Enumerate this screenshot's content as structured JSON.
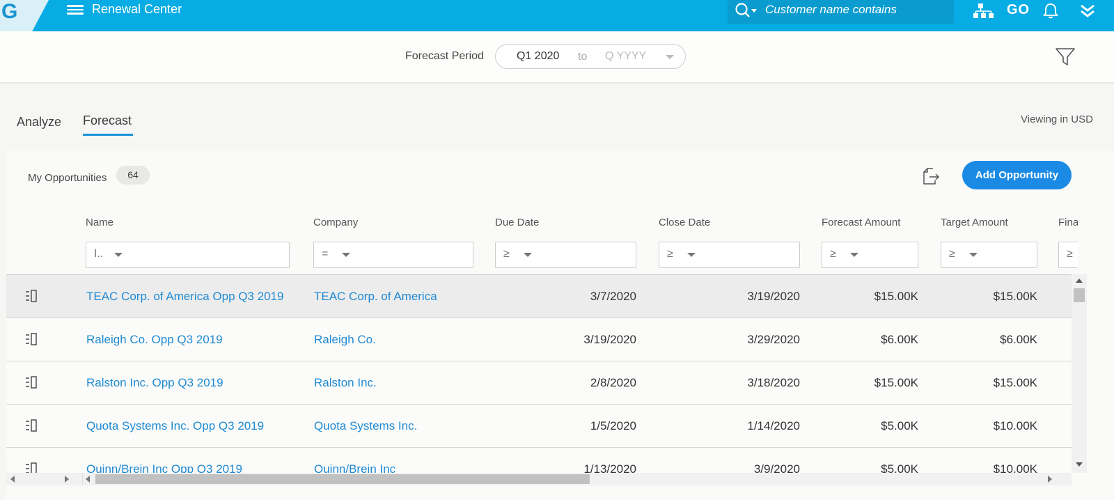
{
  "app": {
    "logo_letter": "G",
    "title": "Renewal Center",
    "go_label": "GO",
    "accent_color": "#06ace3"
  },
  "search": {
    "placeholder": "Customer name contains"
  },
  "forecast_period": {
    "label": "Forecast Period",
    "from": "Q1 2020",
    "separator": "to",
    "to_placeholder": "Q YYYY"
  },
  "tabs": [
    {
      "label": "Analyze",
      "active": false
    },
    {
      "label": "Forecast",
      "active": true
    }
  ],
  "viewing_currency": "Viewing in USD",
  "opportunities": {
    "label": "My Opportunities",
    "count": "64",
    "add_button": "Add Opportunity"
  },
  "columns": [
    {
      "label": "Name",
      "filter_op": "I.."
    },
    {
      "label": "Company",
      "filter_op": "="
    },
    {
      "label": "Due Date",
      "filter_op": "≥"
    },
    {
      "label": "Close Date",
      "filter_op": "≥"
    },
    {
      "label": "Forecast Amount",
      "filter_op": "≥"
    },
    {
      "label": "Target Amount",
      "filter_op": "≥"
    },
    {
      "label": "Final Ar",
      "filter_op": "≥"
    }
  ],
  "rows": [
    {
      "name": "TEAC Corp. of America Opp Q3 2019",
      "company": "TEAC Corp. of America",
      "due_date": "3/7/2020",
      "close_date": "3/19/2020",
      "forecast_amount": "$15.00K",
      "target_amount": "$15.00K"
    },
    {
      "name": "Raleigh Co. Opp Q3 2019",
      "company": "Raleigh Co.",
      "due_date": "3/19/2020",
      "close_date": "3/29/2020",
      "forecast_amount": "$6.00K",
      "target_amount": "$6.00K"
    },
    {
      "name": "Ralston Inc. Opp Q3 2019",
      "company": "Ralston Inc.",
      "due_date": "2/8/2020",
      "close_date": "3/18/2020",
      "forecast_amount": "$15.00K",
      "target_amount": "$15.00K"
    },
    {
      "name": "Quota Systems Inc. Opp Q3 2019",
      "company": "Quota Systems Inc.",
      "due_date": "1/5/2020",
      "close_date": "1/14/2020",
      "forecast_amount": "$5.00K",
      "target_amount": "$10.00K"
    },
    {
      "name": "Quinn/Brein Inc Opp Q3 2019",
      "company": "Quinn/Brein Inc",
      "due_date": "1/13/2020",
      "close_date": "3/9/2020",
      "forecast_amount": "$5.00K",
      "target_amount": "$10.00K"
    }
  ],
  "icons": {
    "menu": "hamburger-menu-icon",
    "search": "search-icon",
    "org_chart": "org-chart-icon",
    "notifications": "bell-icon",
    "expand": "double-chevron-down-icon",
    "filter": "funnel-icon",
    "export": "export-icon",
    "row_detail": "row-detail-icon"
  }
}
